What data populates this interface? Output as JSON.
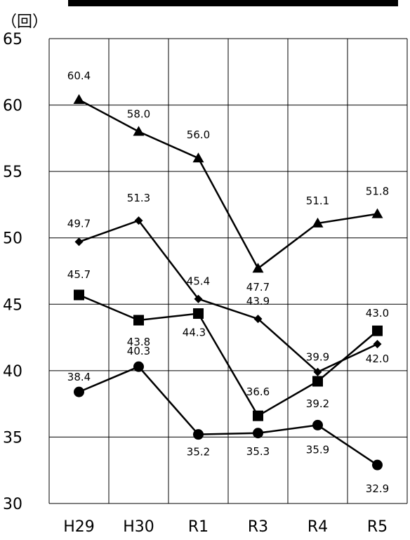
{
  "chart_data": {
    "type": "line",
    "unit_label": "（回）",
    "categories": [
      "H29",
      "H30",
      "R1",
      "R3",
      "R4",
      "R5"
    ],
    "ylim": [
      30,
      65
    ],
    "yticks": [
      30,
      35,
      40,
      45,
      50,
      55,
      60,
      65
    ],
    "grid": true,
    "series": [
      {
        "marker": "triangle",
        "values": [
          60.4,
          58.0,
          56.0,
          47.7,
          51.1,
          51.8
        ],
        "labels": [
          "60.4",
          "58.0",
          "56.0",
          "47.7",
          "51.1",
          "51.8"
        ]
      },
      {
        "marker": "diamond",
        "values": [
          49.7,
          51.3,
          45.4,
          43.9,
          39.9,
          42.0
        ],
        "labels": [
          "49.7",
          "51.3",
          "45.4",
          "43.9",
          "39.9",
          "42.0"
        ]
      },
      {
        "marker": "square",
        "values": [
          45.7,
          43.8,
          44.3,
          36.6,
          39.2,
          43.0
        ],
        "labels": [
          "45.7",
          "43.8",
          "44.3",
          "36.6",
          "39.2",
          "43.0"
        ]
      },
      {
        "marker": "circle",
        "values": [
          38.4,
          40.3,
          35.2,
          35.3,
          35.9,
          32.9
        ],
        "labels": [
          "38.4",
          "40.3",
          "35.2",
          "35.3",
          "35.9",
          "32.9"
        ]
      }
    ],
    "color": "#000000"
  }
}
